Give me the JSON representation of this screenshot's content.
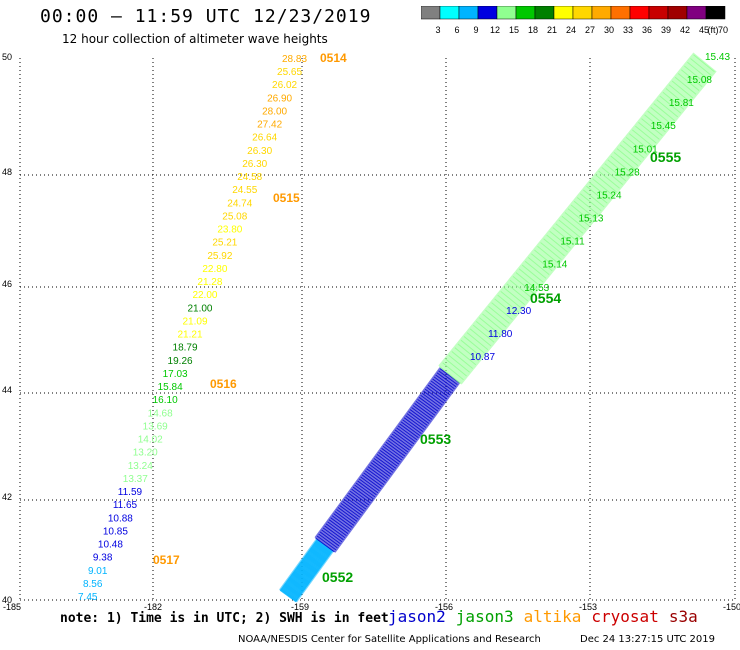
{
  "title": "00:00 – 11:59 UTC 12/23/2019",
  "subtitle": "12 hour collection of altimeter wave heights",
  "note": "note: 1) Time is in UTC; 2) SWH is in feet",
  "credit": "NOAA/NESDIS Center for Satellite Applications and Research",
  "timestamp": "Dec 24 13:27:15 UTC 2019",
  "colorbar": {
    "labels": [
      "3",
      "6",
      "9",
      "12",
      "15",
      "18",
      "21",
      "24",
      "27",
      "30",
      "33",
      "36",
      "39",
      "42",
      "45",
      "70"
    ],
    "unit": "(ft)",
    "colors": [
      "#808080",
      "#00ffff",
      "#00b4ff",
      "#0000e0",
      "#90ff90",
      "#00c800",
      "#008000",
      "#ffff00",
      "#ffd700",
      "#ffaa00",
      "#ff7000",
      "#ff0000",
      "#c80000",
      "#a00000",
      "#800080",
      "#000000"
    ]
  },
  "satellites": [
    {
      "name": "jason2",
      "color": "#0000cc"
    },
    {
      "name": "jason3",
      "color": "#00a000"
    },
    {
      "name": "altika",
      "color": "#ff9900"
    },
    {
      "name": "cryosat",
      "color": "#cc0000"
    },
    {
      "name": "s3a",
      "color": "#990000"
    }
  ],
  "axes": {
    "lon_labels": [
      "-185",
      "-182",
      "-159",
      "-156",
      "-153",
      "-150"
    ],
    "lat_labels": [
      "50",
      "48",
      "46",
      "44",
      "42",
      "40"
    ]
  },
  "altika_track": {
    "color": "#ff9900",
    "times": [
      "0514",
      "0515",
      "0516",
      "0517"
    ],
    "swh": [
      {
        "v": "28.83",
        "c": "#ffaa00"
      },
      {
        "v": "25.65",
        "c": "#ffd700"
      },
      {
        "v": "26.02",
        "c": "#ffd700"
      },
      {
        "v": "26.90",
        "c": "#ffaa00"
      },
      {
        "v": "28.00",
        "c": "#ffaa00"
      },
      {
        "v": "27.42",
        "c": "#ffaa00"
      },
      {
        "v": "26.64",
        "c": "#ffd700"
      },
      {
        "v": "26.30",
        "c": "#ffd700"
      },
      {
        "v": "26.30",
        "c": "#ffd700"
      },
      {
        "v": "24.58",
        "c": "#ffd700"
      },
      {
        "v": "24.55",
        "c": "#ffd700"
      },
      {
        "v": "24.74",
        "c": "#ffd700"
      },
      {
        "v": "25.08",
        "c": "#ffd700"
      },
      {
        "v": "23.80",
        "c": "#ffff00"
      },
      {
        "v": "25.21",
        "c": "#ffd700"
      },
      {
        "v": "25.92",
        "c": "#ffd700"
      },
      {
        "v": "22.80",
        "c": "#ffff00"
      },
      {
        "v": "21.28",
        "c": "#ffff00"
      },
      {
        "v": "22.00",
        "c": "#ffff00"
      },
      {
        "v": "21.00",
        "c": "#008000"
      },
      {
        "v": "21.09",
        "c": "#ffff00"
      },
      {
        "v": "21.21",
        "c": "#ffff00"
      },
      {
        "v": "18.79",
        "c": "#008000"
      },
      {
        "v": "19.26",
        "c": "#008000"
      },
      {
        "v": "17.03",
        "c": "#00c800"
      },
      {
        "v": "15.84",
        "c": "#00c800"
      },
      {
        "v": "16.10",
        "c": "#00c800"
      },
      {
        "v": "14.68",
        "c": "#90ff90"
      },
      {
        "v": "13.69",
        "c": "#90ff90"
      },
      {
        "v": "14.02",
        "c": "#90ff90"
      },
      {
        "v": "13.20",
        "c": "#90ff90"
      },
      {
        "v": "13.24",
        "c": "#90ff90"
      },
      {
        "v": "13.37",
        "c": "#90ff90"
      },
      {
        "v": "11.59",
        "c": "#0000e0"
      },
      {
        "v": "11.65",
        "c": "#0000e0"
      },
      {
        "v": "10.88",
        "c": "#0000e0"
      },
      {
        "v": "10.85",
        "c": "#0000e0"
      },
      {
        "v": "10.48",
        "c": "#0000e0"
      },
      {
        "v": "9.38",
        "c": "#0000e0"
      },
      {
        "v": "9.01",
        "c": "#00b4ff"
      },
      {
        "v": "8.56",
        "c": "#00b4ff"
      },
      {
        "v": "7.45",
        "c": "#00b4ff"
      }
    ]
  },
  "jason3_track": {
    "times": [
      "0555",
      "0554",
      "0553",
      "0552"
    ],
    "swh_labels": [
      "15.43",
      "15.08",
      "15.81",
      "15.45",
      "15.01",
      "15.28",
      "15.24",
      "15.13",
      "15.11",
      "15.14",
      "14.53",
      "12.30",
      "11.80",
      "10.87"
    ]
  }
}
